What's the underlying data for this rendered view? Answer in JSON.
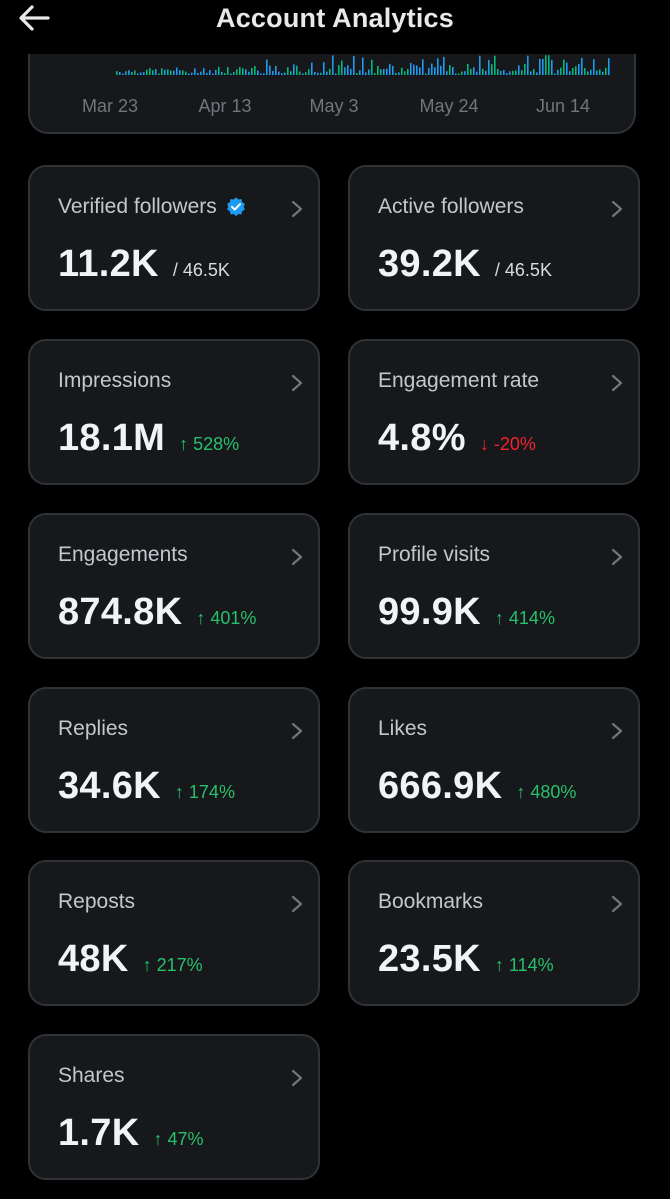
{
  "header": {
    "title": "Account Analytics",
    "back_icon": "arrow-left-icon"
  },
  "chart": {
    "x_labels": [
      "Mar 23",
      "Apr 13",
      "May 3",
      "May 24",
      "Jun 14"
    ],
    "bar_colors": {
      "primary": "#1d9bf0",
      "secondary": "#00ba7c"
    }
  },
  "colors": {
    "background": "#000000",
    "card_bg": "#16181c",
    "card_border": "#2f3336",
    "positive": "#27c06a",
    "negative": "#f4212e",
    "verified": "#1d9bf0"
  },
  "cards": [
    {
      "label": "Verified followers",
      "value": "11.2K",
      "total": "/ 46.5K",
      "verified": true
    },
    {
      "label": "Active followers",
      "value": "39.2K",
      "total": "/ 46.5K"
    },
    {
      "label": "Impressions",
      "value": "18.1M",
      "change": "↑ 528%",
      "direction": "up"
    },
    {
      "label": "Engagement rate",
      "value": "4.8%",
      "change": "↓ -20%",
      "direction": "down"
    },
    {
      "label": "Engagements",
      "value": "874.8K",
      "change": "↑ 401%",
      "direction": "up"
    },
    {
      "label": "Profile visits",
      "value": "99.9K",
      "change": "↑ 414%",
      "direction": "up"
    },
    {
      "label": "Replies",
      "value": "34.6K",
      "change": "↑ 174%",
      "direction": "up"
    },
    {
      "label": "Likes",
      "value": "666.9K",
      "change": "↑ 480%",
      "direction": "up"
    },
    {
      "label": "Reposts",
      "value": "48K",
      "change": "↑ 217%",
      "direction": "up"
    },
    {
      "label": "Bookmarks",
      "value": "23.5K",
      "change": "↑ 114%",
      "direction": "up"
    },
    {
      "label": "Shares",
      "value": "1.7K",
      "change": "↑ 47%",
      "direction": "up"
    }
  ]
}
